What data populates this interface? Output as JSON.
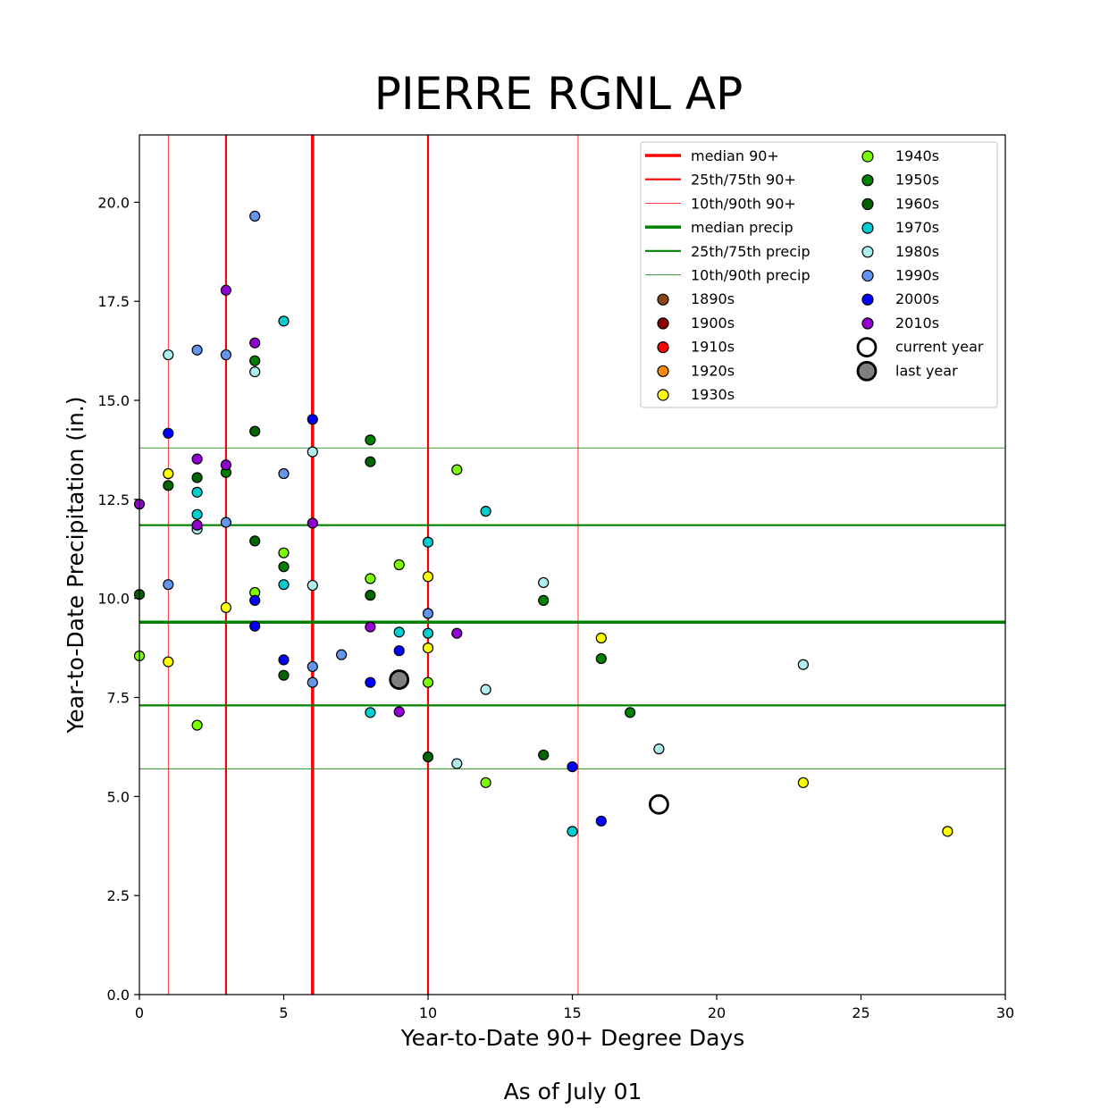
{
  "chart_data": {
    "type": "scatter",
    "title": "PIERRE RGNL AP",
    "xlabel": "Year-to-Date 90+ Degree Days",
    "ylabel": "Year-to-Date Precipitation (in.)",
    "footnote": "As of July 01",
    "xlim": [
      0,
      30
    ],
    "ylim": [
      0,
      21.7
    ],
    "xticks": [
      0,
      5,
      10,
      15,
      20,
      25,
      30
    ],
    "yticks": [
      0.0,
      2.5,
      5.0,
      7.5,
      10.0,
      12.5,
      15.0,
      17.5,
      20.0
    ],
    "ytick_labels": [
      "0.0",
      "2.5",
      "5.0",
      "7.5",
      "10.0",
      "12.5",
      "15.0",
      "17.5",
      "20.0"
    ],
    "grid": false,
    "legend_position": "top-right",
    "reference_lines": {
      "vertical": [
        {
          "label": "median 90+",
          "value": 6,
          "color": "#ff0000",
          "weight": "thick"
        },
        {
          "label": "25th/75th 90+",
          "value": 3,
          "color": "#ff0000",
          "weight": "medium"
        },
        {
          "label": "25th/75th 90+",
          "value": 10,
          "color": "#ff0000",
          "weight": "medium"
        },
        {
          "label": "10th/90th 90+",
          "value": 1,
          "color": "#ff0000",
          "weight": "thin"
        },
        {
          "label": "10th/90th 90+",
          "value": 15.2,
          "color": "#ff0000",
          "weight": "thin"
        }
      ],
      "horizontal": [
        {
          "label": "median precip",
          "value": 9.4,
          "color": "#008000",
          "weight": "thick"
        },
        {
          "label": "25th/75th precip",
          "value": 7.3,
          "color": "#008000",
          "weight": "medium"
        },
        {
          "label": "25th/75th precip",
          "value": 11.85,
          "color": "#008000",
          "weight": "medium"
        },
        {
          "label": "10th/90th precip",
          "value": 5.7,
          "color": "#008000",
          "weight": "thin"
        },
        {
          "label": "10th/90th precip",
          "value": 13.8,
          "color": "#008000",
          "weight": "thin"
        }
      ]
    },
    "legend": [
      {
        "kind": "line",
        "label": "median 90+",
        "color": "#ff0000",
        "weight": "thick"
      },
      {
        "kind": "line",
        "label": "25th/75th 90+",
        "color": "#ff0000",
        "weight": "medium"
      },
      {
        "kind": "line",
        "label": "10th/90th 90+",
        "color": "#ff0000",
        "weight": "thin"
      },
      {
        "kind": "line",
        "label": "median precip",
        "color": "#008000",
        "weight": "thick"
      },
      {
        "kind": "line",
        "label": "25th/75th precip",
        "color": "#008000",
        "weight": "medium"
      },
      {
        "kind": "line",
        "label": "10th/90th precip",
        "color": "#008000",
        "weight": "thin"
      },
      {
        "kind": "marker",
        "label": "1890s",
        "color": "#8b4513"
      },
      {
        "kind": "marker",
        "label": "1900s",
        "color": "#8b0000"
      },
      {
        "kind": "marker",
        "label": "1910s",
        "color": "#ff0000"
      },
      {
        "kind": "marker",
        "label": "1920s",
        "color": "#ff8c00"
      },
      {
        "kind": "marker",
        "label": "1930s",
        "color": "#ffff00"
      },
      {
        "kind": "marker",
        "label": "1940s",
        "color": "#7cfc00"
      },
      {
        "kind": "marker",
        "label": "1950s",
        "color": "#008000"
      },
      {
        "kind": "marker",
        "label": "1960s",
        "color": "#006400"
      },
      {
        "kind": "marker",
        "label": "1970s",
        "color": "#00ced1"
      },
      {
        "kind": "marker",
        "label": "1980s",
        "color": "#afeeee"
      },
      {
        "kind": "marker",
        "label": "1990s",
        "color": "#6495ed"
      },
      {
        "kind": "marker",
        "label": "2000s",
        "color": "#0000ff"
      },
      {
        "kind": "marker",
        "label": "2010s",
        "color": "#9400d3"
      },
      {
        "kind": "big",
        "label": "current year",
        "color": "#ffffff"
      },
      {
        "kind": "big",
        "label": "last year",
        "color": "#808080"
      }
    ],
    "series": [
      {
        "name": "1930s",
        "color": "#ffff00",
        "points": [
          [
            1,
            13.15
          ],
          [
            1,
            8.4
          ],
          [
            3,
            9.77
          ],
          [
            10,
            10.55
          ],
          [
            10,
            8.75
          ],
          [
            16,
            9.0
          ],
          [
            23,
            5.35
          ],
          [
            28,
            4.12
          ]
        ]
      },
      {
        "name": "1940s",
        "color": "#7cfc00",
        "points": [
          [
            0,
            8.55
          ],
          [
            2,
            6.8
          ],
          [
            4,
            10.15
          ],
          [
            5,
            11.15
          ],
          [
            8,
            10.5
          ],
          [
            9,
            10.85
          ],
          [
            10,
            7.88
          ],
          [
            11,
            13.25
          ],
          [
            12,
            5.35
          ]
        ]
      },
      {
        "name": "1950s",
        "color": "#008000",
        "points": [
          [
            3,
            13.18
          ],
          [
            4,
            16.0
          ],
          [
            5,
            10.8
          ],
          [
            8,
            14.0
          ],
          [
            14,
            9.95
          ],
          [
            16,
            8.48
          ],
          [
            17,
            7.12
          ]
        ]
      },
      {
        "name": "1960s",
        "color": "#006400",
        "points": [
          [
            0,
            10.1
          ],
          [
            1,
            12.85
          ],
          [
            2,
            13.05
          ],
          [
            4,
            14.22
          ],
          [
            4,
            11.45
          ],
          [
            5,
            8.06
          ],
          [
            8,
            13.45
          ],
          [
            8,
            10.08
          ],
          [
            10,
            6.0
          ],
          [
            14,
            6.05
          ]
        ]
      },
      {
        "name": "1970s",
        "color": "#00ced1",
        "points": [
          [
            2,
            12.68
          ],
          [
            2,
            12.12
          ],
          [
            5,
            17.0
          ],
          [
            5,
            10.35
          ],
          [
            8,
            7.12
          ],
          [
            9,
            9.15
          ],
          [
            10,
            11.42
          ],
          [
            10,
            9.12
          ],
          [
            12,
            12.2
          ],
          [
            15,
            4.12
          ]
        ]
      },
      {
        "name": "1980s",
        "color": "#afeeee",
        "points": [
          [
            1,
            16.15
          ],
          [
            2,
            11.75
          ],
          [
            4,
            15.72
          ],
          [
            6,
            13.7
          ],
          [
            6,
            10.33
          ],
          [
            11,
            5.83
          ],
          [
            12,
            7.7
          ],
          [
            14,
            10.4
          ],
          [
            18,
            6.2
          ],
          [
            23,
            8.33
          ]
        ]
      },
      {
        "name": "1990s",
        "color": "#6495ed",
        "points": [
          [
            1,
            10.35
          ],
          [
            2,
            16.27
          ],
          [
            3,
            16.15
          ],
          [
            3,
            11.92
          ],
          [
            4,
            19.65
          ],
          [
            5,
            13.15
          ],
          [
            6,
            8.28
          ],
          [
            6,
            7.88
          ],
          [
            7,
            8.58
          ],
          [
            10,
            9.62
          ]
        ]
      },
      {
        "name": "2000s",
        "color": "#0000ff",
        "points": [
          [
            1,
            14.17
          ],
          [
            4,
            9.95
          ],
          [
            4,
            9.3
          ],
          [
            5,
            8.45
          ],
          [
            6,
            14.52
          ],
          [
            8,
            7.88
          ],
          [
            9,
            8.68
          ],
          [
            15,
            5.75
          ],
          [
            16,
            4.38
          ]
        ]
      },
      {
        "name": "2010s",
        "color": "#9400d3",
        "points": [
          [
            0,
            12.38
          ],
          [
            2,
            13.52
          ],
          [
            2,
            11.85
          ],
          [
            3,
            17.78
          ],
          [
            3,
            13.37
          ],
          [
            4,
            16.45
          ],
          [
            6,
            11.9
          ],
          [
            8,
            9.28
          ],
          [
            9,
            7.14
          ],
          [
            11,
            9.12
          ]
        ]
      }
    ],
    "highlight_points": [
      {
        "name": "last year",
        "color": "#808080",
        "x": 9,
        "y": 7.95
      },
      {
        "name": "current year",
        "color": "#ffffff",
        "x": 18,
        "y": 4.8
      }
    ]
  }
}
